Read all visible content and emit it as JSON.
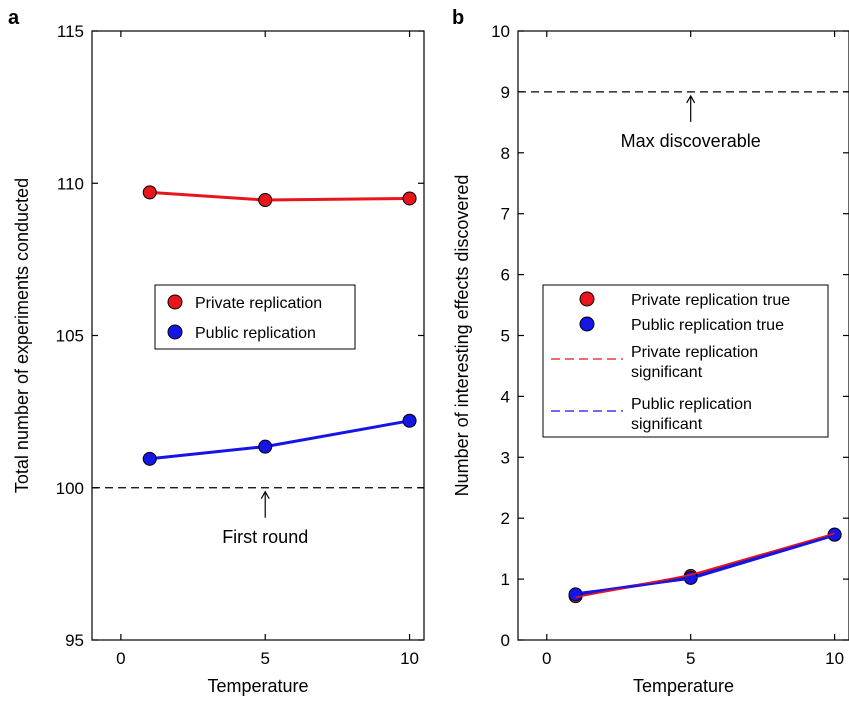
{
  "chart_data": [
    {
      "panel": "a",
      "type": "line",
      "xlabel": "Temperature",
      "ylabel": "Total number of experiments conducted",
      "xlim": [
        -1,
        10.5
      ],
      "ylim": [
        95,
        115
      ],
      "xticks": [
        0,
        5,
        10
      ],
      "yticks": [
        95,
        100,
        105,
        110,
        115
      ],
      "x": [
        1,
        5,
        10
      ],
      "series": [
        {
          "name": "Private replication",
          "values": [
            109.7,
            109.45,
            109.5
          ],
          "color": "#e8151c"
        },
        {
          "name": "Public replication",
          "values": [
            100.95,
            101.35,
            102.2
          ],
          "color": "#1515e6"
        }
      ],
      "reference_line": {
        "y": 100,
        "label": "First round",
        "label_x": 5
      },
      "legend_position": "center"
    },
    {
      "panel": "b",
      "type": "line",
      "xlabel": "Temperature",
      "ylabel": "Number of interesting effects discovered",
      "xlim": [
        -1,
        10.5
      ],
      "ylim": [
        0,
        10
      ],
      "xticks": [
        0,
        5,
        10
      ],
      "yticks": [
        0,
        1,
        2,
        3,
        4,
        5,
        6,
        7,
        8,
        9,
        10
      ],
      "x": [
        1,
        5,
        10
      ],
      "series": [
        {
          "name": "Private replication true",
          "values": [
            0.72,
            1.05,
            1.73
          ],
          "color": "#e8151c",
          "style": "marker"
        },
        {
          "name": "Public replication true",
          "values": [
            0.75,
            1.02,
            1.73
          ],
          "color": "#1515e6",
          "style": "marker"
        },
        {
          "name": "Private replication significant",
          "values": [
            0.7,
            1.07,
            1.75
          ],
          "color": "#e8151c",
          "style": "dashed"
        },
        {
          "name": "Public replication significant",
          "values": [
            0.77,
            1.0,
            1.71
          ],
          "color": "#1515e6",
          "style": "dashed"
        }
      ],
      "legend_lines": [
        [
          "Private replication true"
        ],
        [
          "Public replication true"
        ],
        [
          "Private replication",
          "significant"
        ],
        [
          "Public replication",
          "significant"
        ]
      ],
      "reference_line": {
        "y": 9,
        "label": "Max discoverable",
        "label_x": 5
      },
      "legend_position": "center-left"
    }
  ]
}
